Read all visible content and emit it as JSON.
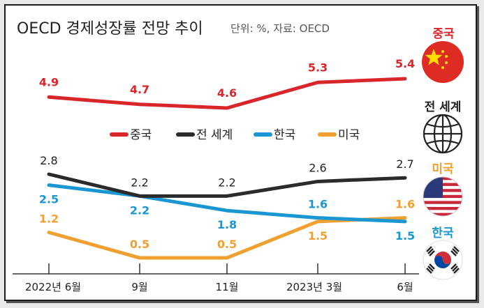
{
  "chart_data": {
    "type": "line",
    "title": "OECD 경제성장률 전망 추이",
    "unit_note": "단위: %, 자료: OECD",
    "categories": [
      "2022년 6월",
      "9월",
      "11월",
      "2023년 3월",
      "6월"
    ],
    "series": [
      {
        "name": "중국",
        "color": "#d9262b",
        "values": [
          4.9,
          4.7,
          4.6,
          5.3,
          5.4
        ],
        "labels": [
          "4.9",
          "4.7",
          "4.6",
          "5.3",
          "5.4"
        ]
      },
      {
        "name": "전 세계",
        "color": "#2b2b2b",
        "values": [
          2.8,
          2.2,
          2.2,
          2.6,
          2.7
        ],
        "labels": [
          "2.8",
          "2.2",
          "2.2",
          "2.6",
          "2.7"
        ]
      },
      {
        "name": "한국",
        "color": "#1a97d3",
        "values": [
          2.5,
          2.2,
          1.8,
          1.6,
          1.5
        ],
        "labels": [
          "2.5",
          "2.2",
          "1.8",
          "1.6",
          "1.5"
        ]
      },
      {
        "name": "미국",
        "color": "#f0a030",
        "values": [
          1.2,
          0.5,
          0.5,
          1.5,
          1.6
        ],
        "labels": [
          "1.2",
          "0.5",
          "0.5",
          "1.5",
          "1.6"
        ]
      }
    ],
    "xlabel": "",
    "ylabel": "",
    "legend": "middle",
    "grid": false
  },
  "countries": [
    {
      "name": "중국",
      "icon": "china-flag-icon",
      "color": "#d9262b"
    },
    {
      "name": "전 세계",
      "icon": "globe-icon",
      "color": "#222222"
    },
    {
      "name": "미국",
      "icon": "usa-flag-icon",
      "color": "#f0a030"
    },
    {
      "name": "한국",
      "icon": "korea-flag-icon",
      "color": "#1a97d3"
    }
  ]
}
